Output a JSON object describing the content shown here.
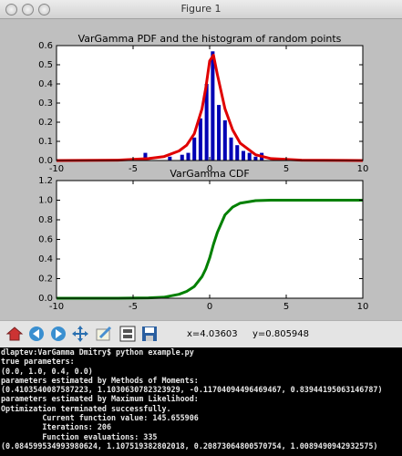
{
  "window": {
    "title": "Figure 1"
  },
  "chart_data": [
    {
      "type": "histogram",
      "title": "VarGamma PDF and the histogram of random points",
      "bins": [
        -4.4,
        -4.0,
        -3.6,
        -3.2,
        -2.8,
        -2.4,
        -2.0,
        -1.6,
        -1.2,
        -0.8,
        -0.4,
        0.0,
        0.4,
        0.8,
        1.2,
        1.6,
        2.0,
        2.4,
        2.8,
        3.2,
        3.6
      ],
      "values": [
        0.04,
        0,
        0,
        0,
        0.02,
        0,
        0.03,
        0.04,
        0.12,
        0.22,
        0.4,
        0.57,
        0.29,
        0.21,
        0.12,
        0.08,
        0.05,
        0.04,
        0.02,
        0.04
      ],
      "color": "#0000b4",
      "line": {
        "x": [
          -10,
          -6,
          -4,
          -3,
          -2,
          -1.5,
          -1,
          -0.5,
          -0.25,
          0,
          0.25,
          0.5,
          1,
          1.5,
          2,
          3,
          4,
          6,
          10
        ],
        "values": [
          0,
          0.002,
          0.01,
          0.02,
          0.05,
          0.08,
          0.14,
          0.27,
          0.38,
          0.52,
          0.55,
          0.45,
          0.27,
          0.16,
          0.09,
          0.03,
          0.01,
          0.002,
          0
        ],
        "color": "#e00000"
      },
      "xlim": [
        -10,
        10
      ],
      "xticks": [
        -10,
        -5,
        0,
        5,
        10
      ],
      "ylim": [
        0,
        0.6
      ],
      "yticks": [
        {
          "value": 0,
          "label": "0.0"
        },
        0.1,
        0.2,
        0.3,
        0.4,
        0.5,
        0.6
      ]
    },
    {
      "type": "line",
      "title": "VarGamma CDF",
      "x": [
        -10,
        -6,
        -4,
        -3,
        -2,
        -1.5,
        -1,
        -0.5,
        -0.25,
        0,
        0.25,
        0.5,
        1,
        1.5,
        2,
        3,
        4,
        6,
        10
      ],
      "values": [
        0,
        0,
        0.003,
        0.01,
        0.04,
        0.07,
        0.12,
        0.22,
        0.3,
        0.41,
        0.55,
        0.67,
        0.85,
        0.93,
        0.97,
        0.995,
        1.0,
        1.0,
        1.0
      ],
      "color": "#008000",
      "xlim": [
        -10,
        10
      ],
      "xticks": [
        -10,
        -5,
        0,
        5,
        10
      ],
      "ylim": [
        0,
        1.2
      ],
      "yticks": [
        {
          "value": 0,
          "label": "0.0"
        },
        0.2,
        0.4,
        0.6,
        0.8,
        {
          "value": 1,
          "label": "1.0"
        },
        1.2
      ]
    }
  ],
  "toolbar": {
    "x": "x=4.03603",
    "y": "y=0.805948"
  },
  "terminal": {
    "lines": [
      "dlaptev:VarGamma Dmitry$ python example.py",
      "true parameters:",
      "(0.0, 1.0, 0.4, 0.0)",
      "parameters estimated by Methods of Moments:",
      "(0.4103540087587223, 1.1030630782323929, -0.11704094496469467, 0.83944195063146787)",
      "parameters estimated by Maximum Likelihood:",
      "Optimization terminated successfully.",
      "         Current function value: 145.655906",
      "         Iterations: 206",
      "         Function evaluations: 335",
      "(0.084599534993980624, 1.107519382802018, 0.20873064800570754, 1.0089490942932575)"
    ]
  }
}
